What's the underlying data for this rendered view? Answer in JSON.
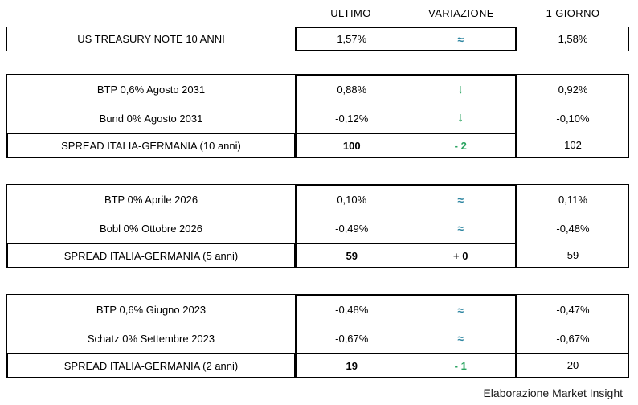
{
  "columns": {
    "ultimo": "ULTIMO",
    "variazione": "VARIAZIONE",
    "giorno": "1 GIORNO"
  },
  "colors": {
    "approx_teal": "#2E86A1",
    "green": "#28A35F",
    "black": "#000000"
  },
  "us": {
    "label": "US TREASURY NOTE 10 ANNI",
    "ultimo": "1,57%",
    "var": "≈",
    "var_color": "#2E86A1",
    "giorno": "1,58%"
  },
  "s10": {
    "rows": [
      {
        "label": "BTP 0,6% Agosto 2031",
        "ultimo": "0,88%",
        "var": "↓",
        "var_color": "#28A35F",
        "giorno": "0,92%"
      },
      {
        "label": "Bund 0% Agosto 2031",
        "ultimo": "-0,12%",
        "var": "↓",
        "var_color": "#28A35F",
        "giorno": "-0,10%"
      }
    ],
    "spread": {
      "label": "SPREAD ITALIA-GERMANIA (10 anni)",
      "ultimo": "100",
      "var": "- 2",
      "var_color": "#28A35F",
      "giorno": "102"
    }
  },
  "s5": {
    "rows": [
      {
        "label": "BTP 0% Aprile 2026",
        "ultimo": "0,10%",
        "var": "≈",
        "var_color": "#2E86A1",
        "giorno": "0,11%"
      },
      {
        "label": "Bobl 0% Ottobre 2026",
        "ultimo": "-0,49%",
        "var": "≈",
        "var_color": "#2E86A1",
        "giorno": "-0,48%"
      }
    ],
    "spread": {
      "label": "SPREAD ITALIA-GERMANIA (5 anni)",
      "ultimo": "59",
      "var": "+ 0",
      "var_color": "#000000",
      "giorno": "59"
    }
  },
  "s2": {
    "rows": [
      {
        "label": "BTP 0,6% Giugno 2023",
        "ultimo": "-0,48%",
        "var": "≈",
        "var_color": "#2E86A1",
        "giorno": "-0,47%"
      },
      {
        "label": "Schatz 0% Settembre 2023",
        "ultimo": "-0,67%",
        "var": "≈",
        "var_color": "#2E86A1",
        "giorno": "-0,67%"
      }
    ],
    "spread": {
      "label": "SPREAD ITALIA-GERMANIA (2 anni)",
      "ultimo": "19",
      "var": "- 1",
      "var_color": "#28A35F",
      "giorno": "20"
    }
  },
  "footer": "Elaborazione Market Insight",
  "chart_data": {
    "type": "table",
    "columns": [
      "",
      "ULTIMO",
      "VARIAZIONE",
      "1 GIORNO"
    ],
    "rows": [
      [
        "US TREASURY NOTE 10 ANNI",
        "1,57%",
        "≈",
        "1,58%"
      ],
      [
        "BTP 0,6% Agosto 2031",
        "0,88%",
        "↓",
        "0,92%"
      ],
      [
        "Bund 0% Agosto 2031",
        "-0,12%",
        "↓",
        "-0,10%"
      ],
      [
        "SPREAD ITALIA-GERMANIA (10 anni)",
        "100",
        "- 2",
        "102"
      ],
      [
        "BTP 0% Aprile 2026",
        "0,10%",
        "≈",
        "0,11%"
      ],
      [
        "Bobl 0% Ottobre 2026",
        "-0,49%",
        "≈",
        "-0,48%"
      ],
      [
        "SPREAD ITALIA-GERMANIA (5 anni)",
        "59",
        "+ 0",
        "59"
      ],
      [
        "BTP 0,6% Giugno 2023",
        "-0,48%",
        "≈",
        "-0,47%"
      ],
      [
        "Schatz 0% Settembre 2023",
        "-0,67%",
        "≈",
        "-0,67%"
      ],
      [
        "SPREAD ITALIA-GERMANIA (2 anni)",
        "19",
        "- 1",
        "20"
      ]
    ]
  }
}
